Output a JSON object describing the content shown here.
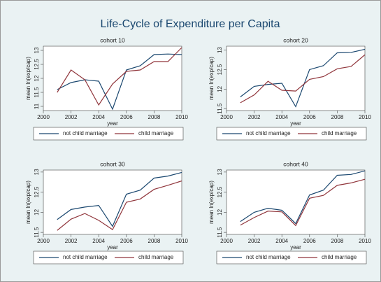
{
  "title": "Life-Cycle of Expenditure per Capita",
  "chart_data": [
    {
      "type": "line",
      "title": "cohort 10",
      "xlabel": "year",
      "ylabel": "mean ln(exp/cap)",
      "x": [
        2001,
        2002,
        2003,
        2004,
        2005,
        2006,
        2007,
        2008,
        2009,
        2010
      ],
      "xlim": [
        2000,
        2010
      ],
      "xticks": [
        2000,
        2002,
        2004,
        2006,
        2008,
        2010
      ],
      "ylim": [
        10.85,
        13.15
      ],
      "yticks": [
        11,
        11.5,
        12,
        12.5,
        13
      ],
      "series": [
        {
          "name": "not child marriage",
          "color": "#1a476f",
          "values": [
            11.6,
            11.85,
            11.95,
            11.9,
            10.9,
            12.3,
            12.45,
            12.85,
            12.87,
            12.85
          ]
        },
        {
          "name": "child marriage",
          "color": "#90353b",
          "values": [
            11.5,
            12.3,
            11.95,
            11.05,
            11.8,
            12.25,
            12.3,
            12.6,
            12.6,
            13.1
          ]
        }
      ]
    },
    {
      "type": "line",
      "title": "cohort 20",
      "xlabel": "year",
      "ylabel": "mean ln(exp/cap)",
      "x": [
        2001,
        2002,
        2003,
        2004,
        2005,
        2006,
        2007,
        2008,
        2009,
        2010
      ],
      "xlim": [
        2000,
        2010
      ],
      "xticks": [
        2000,
        2002,
        2004,
        2006,
        2008,
        2010
      ],
      "ylim": [
        11.45,
        13.1
      ],
      "yticks": [
        11.5,
        12,
        12.5,
        13
      ],
      "series": [
        {
          "name": "not child marriage",
          "color": "#1a476f",
          "values": [
            11.8,
            12.07,
            12.12,
            12.15,
            11.55,
            12.5,
            12.6,
            12.93,
            12.94,
            13.02
          ]
        },
        {
          "name": "child marriage",
          "color": "#90353b",
          "values": [
            11.65,
            11.85,
            12.2,
            11.97,
            11.95,
            12.25,
            12.32,
            12.52,
            12.58,
            12.88
          ]
        }
      ]
    },
    {
      "type": "line",
      "title": "cohort 30",
      "xlabel": "year",
      "ylabel": "mean ln(exp/cap)",
      "x": [
        2001,
        2002,
        2003,
        2004,
        2005,
        2006,
        2007,
        2008,
        2009,
        2010
      ],
      "xlim": [
        2000,
        2010
      ],
      "xticks": [
        2000,
        2002,
        2004,
        2006,
        2008,
        2010
      ],
      "ylim": [
        11.45,
        13.05
      ],
      "yticks": [
        11.5,
        12,
        12.5,
        13
      ],
      "series": [
        {
          "name": "not child marriage",
          "color": "#1a476f",
          "values": [
            11.82,
            12.07,
            12.13,
            12.17,
            11.65,
            12.45,
            12.55,
            12.85,
            12.9,
            12.99
          ]
        },
        {
          "name": "child marriage",
          "color": "#90353b",
          "values": [
            11.55,
            11.83,
            11.97,
            11.8,
            11.57,
            12.25,
            12.33,
            12.57,
            12.67,
            12.78
          ]
        }
      ]
    },
    {
      "type": "line",
      "title": "cohort 40",
      "xlabel": "year",
      "ylabel": "mean ln(exp/cap)",
      "x": [
        2001,
        2002,
        2003,
        2004,
        2005,
        2006,
        2007,
        2008,
        2009,
        2010
      ],
      "xlim": [
        2000,
        2010
      ],
      "xticks": [
        2000,
        2002,
        2004,
        2006,
        2008,
        2010
      ],
      "ylim": [
        11.45,
        13.05
      ],
      "yticks": [
        11.5,
        12,
        12.5,
        13
      ],
      "series": [
        {
          "name": "not child marriage",
          "color": "#1a476f",
          "values": [
            11.77,
            12.0,
            12.1,
            12.05,
            11.72,
            12.43,
            12.55,
            12.92,
            12.94,
            13.03
          ]
        },
        {
          "name": "child marriage",
          "color": "#90353b",
          "values": [
            11.68,
            11.87,
            12.03,
            12.01,
            11.67,
            12.35,
            12.42,
            12.67,
            12.73,
            12.82
          ]
        }
      ]
    }
  ]
}
